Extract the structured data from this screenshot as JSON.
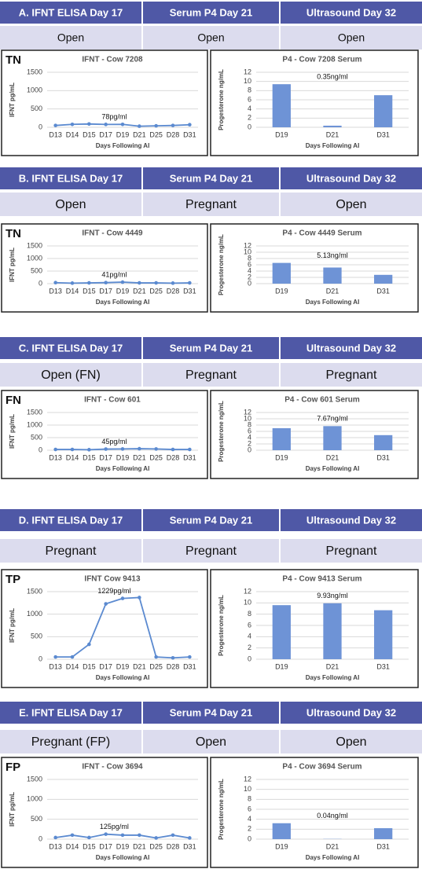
{
  "panels": [
    {
      "header": [
        "A.  IFNT ELISA  Day 17",
        "Serum P4 Day 21",
        "Ultrasound Day 32"
      ],
      "status": [
        "Open",
        "Open",
        "Open"
      ],
      "label": "TN"
    },
    {
      "header": [
        "B. IFNT ELISA Day 17",
        "Serum P4 Day 21",
        "Ultrasound Day 32"
      ],
      "status": [
        "Open",
        "Pregnant",
        "Open"
      ],
      "label": "TN"
    },
    {
      "header": [
        "C. IFNT ELISA Day 17",
        "Serum P4 Day 21",
        "Ultrasound Day 32"
      ],
      "status": [
        "Open (FN)",
        "Pregnant",
        "Pregnant"
      ],
      "label": "FN"
    },
    {
      "header": [
        "D. IFNT ELISA  Day 17",
        "Serum P4 Day 21",
        "Ultrasound Day 32"
      ],
      "status": [
        "Pregnant",
        "Pregnant",
        "Pregnant"
      ],
      "label": "TP"
    },
    {
      "header": [
        "E. IFNT ELISA  Day 17",
        "Serum P4 Day 21",
        "Ultrasound Day 32"
      ],
      "status": [
        "Pregnant (FP)",
        "Open",
        "Open"
      ],
      "label": "FP"
    }
  ],
  "chart_data": [
    {
      "type": "line",
      "title": "IFNT - Cow 7208",
      "y_label": "IFNT pg/mL",
      "x_label": "Days Following AI",
      "annotation": "78pg/ml",
      "categories": [
        "D13",
        "D14",
        "D15",
        "D17",
        "D19",
        "D21",
        "D25",
        "D28",
        "D31"
      ],
      "values": [
        50,
        80,
        90,
        78,
        80,
        30,
        40,
        50,
        70
      ],
      "color": "#5b8ad0",
      "ylim": [
        0,
        1500
      ],
      "yticks": [
        0,
        500,
        1000,
        1500
      ],
      "grid": true
    },
    {
      "type": "bar",
      "title": "P4 - Cow 7208 Serum",
      "y_label": "Progesterone ng/mL",
      "x_label": "Days Following AI",
      "annotation": "0.35ng/ml",
      "categories": [
        "D19",
        "D21",
        "D31"
      ],
      "values": [
        9.4,
        0.35,
        7.0
      ],
      "color": "#6e93d6",
      "ylim": [
        0,
        12
      ],
      "yticks": [
        0,
        2,
        4,
        6,
        8,
        10,
        12
      ],
      "grid": true
    },
    {
      "type": "line",
      "title": "IFNT - Cow 4449",
      "y_label": "IFNT pg/mL",
      "x_label": "Days Following AI",
      "annotation": "41pg/ml",
      "categories": [
        "D13",
        "D14",
        "D15",
        "D17",
        "D19",
        "D21",
        "D25",
        "D28",
        "D31"
      ],
      "values": [
        40,
        20,
        30,
        41,
        60,
        30,
        30,
        20,
        30
      ],
      "color": "#5b8ad0",
      "ylim": [
        0,
        1500
      ],
      "yticks": [
        0,
        500,
        1000,
        1500
      ],
      "grid": true
    },
    {
      "type": "bar",
      "title": "P4 - Cow 4449 Serum",
      "y_label": "Progesterone ng/mL",
      "x_label": "Days Following AI",
      "annotation": "5.13ng/ml",
      "categories": [
        "D19",
        "D21",
        "D31"
      ],
      "values": [
        6.6,
        5.13,
        2.8
      ],
      "color": "#6e93d6",
      "ylim": [
        0,
        12
      ],
      "yticks": [
        0,
        2,
        4,
        6,
        8,
        10,
        12
      ],
      "grid": true
    },
    {
      "type": "line",
      "title": "IFNT - Cow 601",
      "y_label": "IFNT pg/mL",
      "x_label": "Days Following AI",
      "annotation": "45pg/ml",
      "categories": [
        "D13",
        "D14",
        "D15",
        "D17",
        "D19",
        "D21",
        "D25",
        "D28",
        "D31"
      ],
      "values": [
        30,
        30,
        20,
        45,
        50,
        60,
        50,
        30,
        30
      ],
      "color": "#5b8ad0",
      "ylim": [
        0,
        1500
      ],
      "yticks": [
        0,
        500,
        1000,
        1500
      ],
      "grid": true
    },
    {
      "type": "bar",
      "title": "P4 - Cow 601 Serum",
      "y_label": "Progesterone ng/mL",
      "x_label": "Days Following AI",
      "annotation": "7.67ng/ml",
      "categories": [
        "D19",
        "D21",
        "D31"
      ],
      "values": [
        7.0,
        7.67,
        4.8
      ],
      "color": "#6e93d6",
      "ylim": [
        0,
        12
      ],
      "yticks": [
        0,
        2,
        4,
        6,
        8,
        10,
        12
      ],
      "grid": true
    },
    {
      "type": "line",
      "title": "IFNT Cow 9413",
      "y_label": "IFNT pg/mL",
      "x_label": "Days Following AI",
      "annotation": "1229pg/ml",
      "categories": [
        "D13",
        "D14",
        "D15",
        "D17",
        "D19",
        "D21",
        "D25",
        "D28",
        "D31"
      ],
      "values": [
        50,
        50,
        330,
        1229,
        1350,
        1370,
        50,
        30,
        50
      ],
      "color": "#5b8ad0",
      "ylim": [
        0,
        1500
      ],
      "yticks": [
        0,
        500,
        1000,
        1500
      ],
      "grid": true
    },
    {
      "type": "bar",
      "title": "P4 - Cow 9413 Serum",
      "y_label": "Progesterone ng/mL",
      "x_label": "Days Following AI",
      "annotation": "9.93ng/ml",
      "categories": [
        "D19",
        "D21",
        "D31"
      ],
      "values": [
        9.6,
        9.93,
        8.7
      ],
      "color": "#6e93d6",
      "ylim": [
        0,
        12
      ],
      "yticks": [
        0,
        2,
        4,
        6,
        8,
        10,
        12
      ],
      "grid": true
    },
    {
      "type": "line",
      "title": "IFNT - Cow 3694",
      "y_label": "IFNT pg/mL",
      "x_label": "Days Following AI",
      "annotation": "125pg/ml",
      "categories": [
        "D13",
        "D14",
        "D15",
        "D17",
        "D19",
        "D21",
        "D25",
        "D28",
        "D31"
      ],
      "values": [
        40,
        100,
        40,
        125,
        100,
        100,
        30,
        100,
        30
      ],
      "color": "#5b8ad0",
      "ylim": [
        0,
        1500
      ],
      "yticks": [
        0,
        500,
        1000,
        1500
      ],
      "grid": true
    },
    {
      "type": "bar",
      "title": "P4 - Cow 3694 Serum",
      "y_label": "Progesterone ng/mL",
      "x_label": "Days Following AI",
      "annotation": "0.04ng/ml",
      "categories": [
        "D19",
        "D21",
        "D31"
      ],
      "values": [
        3.2,
        0.04,
        2.2
      ],
      "color": "#6e93d6",
      "ylim": [
        0,
        12
      ],
      "yticks": [
        0,
        2,
        4,
        6,
        8,
        10,
        12
      ],
      "grid": true
    }
  ]
}
